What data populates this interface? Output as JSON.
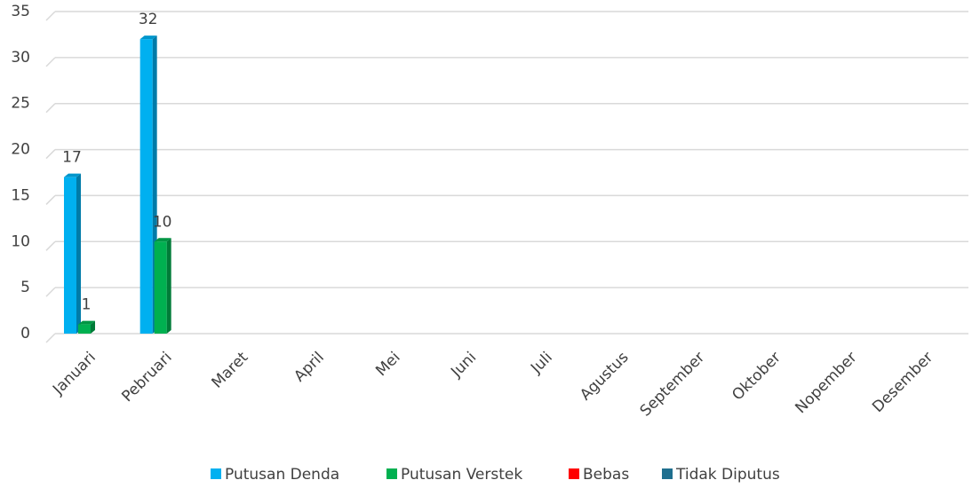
{
  "chart_data": {
    "type": "bar",
    "categories": [
      "Januari",
      "Pebruari",
      "Maret",
      "April",
      "Mei",
      "Juni",
      "Juli",
      "Agustus",
      "September",
      "Oktober",
      "Nopember",
      "Desember"
    ],
    "series": [
      {
        "name": "Putusan Denda",
        "color": "#00b0f0",
        "values": [
          17,
          32,
          null,
          null,
          null,
          null,
          null,
          null,
          null,
          null,
          null,
          null
        ]
      },
      {
        "name": "Putusan Verstek",
        "color": "#00b050",
        "values": [
          1,
          10,
          null,
          null,
          null,
          null,
          null,
          null,
          null,
          null,
          null,
          null
        ]
      },
      {
        "name": "Bebas",
        "color": "#ff0000",
        "values": [
          null,
          null,
          null,
          null,
          null,
          null,
          null,
          null,
          null,
          null,
          null,
          null
        ]
      },
      {
        "name": "Tidak Diputus",
        "color": "#1f6f8f",
        "values": [
          null,
          null,
          null,
          null,
          null,
          null,
          null,
          null,
          null,
          null,
          null,
          null
        ]
      }
    ],
    "ylim": [
      0,
      35
    ],
    "yticks": [
      0,
      5,
      10,
      15,
      20,
      25,
      30,
      35
    ],
    "grid": true,
    "legend": "bottom"
  }
}
